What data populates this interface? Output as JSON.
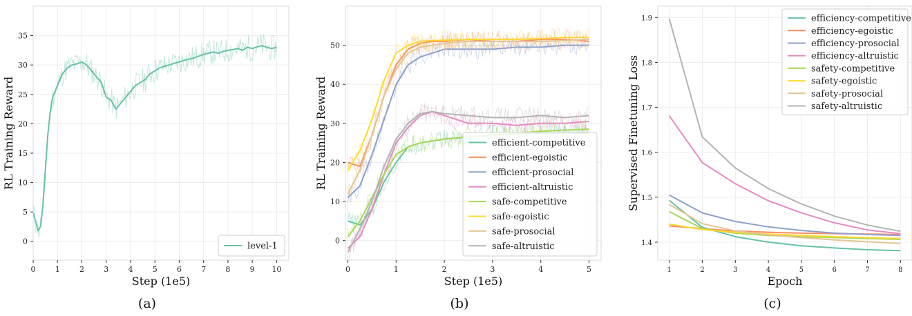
{
  "chart_data": [
    {
      "type": "line",
      "panel_label": "(a)",
      "xlabel": "Step (1e5)",
      "ylabel": "RL Training Reward",
      "xlim": [
        0,
        10.5
      ],
      "ylim": [
        -3.2,
        40
      ],
      "xticks": [
        0,
        1,
        2,
        3,
        4,
        5,
        6,
        7,
        8,
        9,
        10
      ],
      "yticks": [
        0,
        5,
        10,
        15,
        20,
        25,
        30,
        35
      ],
      "grid": true,
      "legend_position": "bottom-right",
      "series": [
        {
          "name": "level-1",
          "color": "#66c2a5",
          "x": [
            0,
            0.1,
            0.2,
            0.3,
            0.4,
            0.5,
            0.6,
            0.7,
            0.8,
            0.9,
            1.0,
            1.2,
            1.4,
            1.6,
            1.8,
            2.0,
            2.2,
            2.4,
            2.6,
            2.8,
            3.0,
            3.2,
            3.4,
            3.6,
            3.8,
            4.0,
            4.2,
            4.4,
            4.6,
            4.8,
            5.0,
            5.2,
            5.4,
            5.6,
            5.8,
            6.0,
            6.2,
            6.4,
            6.6,
            6.8,
            7.0,
            7.2,
            7.4,
            7.6,
            7.8,
            8.0,
            8.2,
            8.4,
            8.6,
            8.8,
            9.0,
            9.2,
            9.4,
            9.6,
            9.8,
            10.0
          ],
          "y": [
            4.8,
            3.5,
            1.8,
            2.5,
            6,
            12,
            18,
            22,
            24.5,
            25.5,
            26.5,
            28.5,
            29.5,
            30,
            30.2,
            30.5,
            30,
            29,
            28,
            27,
            24.5,
            24,
            22.5,
            23.5,
            24.5,
            25.5,
            26.5,
            27,
            27.5,
            28.5,
            29,
            29.5,
            29.8,
            30,
            30.3,
            30.5,
            30.8,
            31,
            31.2,
            31.5,
            31.8,
            32,
            32.2,
            32,
            32.3,
            32.5,
            32.6,
            32.8,
            32.5,
            33,
            32.8,
            33.1,
            33.3,
            33,
            32.8,
            33
          ]
        }
      ]
    },
    {
      "type": "line",
      "panel_label": "(b)",
      "xlabel": "Step (1e5)",
      "ylabel": "RL Training Reward",
      "xlim": [
        -0.05,
        5.25
      ],
      "ylim": [
        -5,
        60
      ],
      "xticks": [
        0,
        1,
        2,
        3,
        4,
        5
      ],
      "yticks": [
        0,
        10,
        20,
        30,
        40,
        50
      ],
      "grid": true,
      "legend_position": "bottom-right",
      "x": [
        0,
        0.25,
        0.5,
        0.75,
        1.0,
        1.25,
        1.5,
        1.75,
        2.0,
        2.5,
        3.0,
        3.5,
        4.0,
        4.5,
        5.0
      ],
      "series": [
        {
          "name": "efficient-competitive",
          "color": "#66c2a5",
          "values": [
            5,
            4,
            8,
            15,
            20,
            24,
            25,
            25.5,
            26,
            26.5,
            27,
            27.3,
            27.5,
            27.5,
            27.5
          ]
        },
        {
          "name": "efficient-egoistic",
          "color": "#fc8d62",
          "values": [
            20,
            19,
            27,
            37,
            45,
            49,
            50.5,
            51,
            51,
            51.5,
            51,
            51,
            51.5,
            51.5,
            51
          ]
        },
        {
          "name": "efficient-prosocial",
          "color": "#8da0cb",
          "values": [
            11,
            14,
            22,
            31,
            40,
            45,
            47,
            48,
            49,
            49,
            49,
            49.5,
            49.5,
            50,
            50
          ]
        },
        {
          "name": "efficient-altruistic",
          "color": "#e78ac3",
          "values": [
            -2,
            1,
            8,
            17,
            25,
            29,
            32,
            33,
            32,
            30,
            30,
            29.5,
            30,
            30,
            30.5
          ]
        },
        {
          "name": "safe-competitive",
          "color": "#a6d854",
          "values": [
            1,
            5,
            11,
            17,
            22,
            24,
            25,
            25.5,
            26,
            26.5,
            27,
            27.5,
            28,
            28.3,
            28.5
          ]
        },
        {
          "name": "safe-egoistic",
          "color": "#ffd92f",
          "values": [
            18,
            23,
            31,
            41,
            48,
            50,
            51,
            51.2,
            51.3,
            51.5,
            51.5,
            51.5,
            51.7,
            52,
            52
          ]
        },
        {
          "name": "safe-prosocial",
          "color": "#e5c494",
          "values": [
            12,
            18,
            27,
            37,
            44,
            48,
            49.5,
            50,
            50.5,
            51,
            51,
            51,
            51,
            51.2,
            51.5
          ]
        },
        {
          "name": "safe-altruistic",
          "color": "#b3b3b3",
          "values": [
            -3,
            3,
            10,
            19,
            26,
            30,
            32.5,
            33,
            32.5,
            32,
            31.5,
            31.5,
            32,
            31.5,
            32
          ]
        }
      ]
    },
    {
      "type": "line",
      "panel_label": "(c)",
      "xlabel": "Epoch",
      "ylabel": "Supervised Finetuning Loss",
      "xlim": [
        0.65,
        8.35
      ],
      "ylim": [
        1.36,
        1.925
      ],
      "xticks": [
        1,
        2,
        3,
        4,
        5,
        6,
        7,
        8
      ],
      "yticks": [
        1.4,
        1.5,
        1.6,
        1.7,
        1.8,
        1.9
      ],
      "grid": true,
      "legend_position": "top-right",
      "x": [
        1,
        2,
        3,
        4,
        5,
        6,
        7,
        8
      ],
      "series": [
        {
          "name": "efficiency-competitive",
          "color": "#66c2a5",
          "values": [
            1.493,
            1.433,
            1.412,
            1.4,
            1.392,
            1.387,
            1.383,
            1.381
          ]
        },
        {
          "name": "efficiency-egoistic",
          "color": "#fc8d62",
          "values": [
            1.436,
            1.43,
            1.425,
            1.422,
            1.42,
            1.419,
            1.418,
            1.417
          ]
        },
        {
          "name": "efficiency-prosocial",
          "color": "#8da0cb",
          "values": [
            1.505,
            1.465,
            1.446,
            1.434,
            1.426,
            1.42,
            1.417,
            1.415
          ]
        },
        {
          "name": "efficiency-altruistic",
          "color": "#e78ac3",
          "values": [
            1.681,
            1.577,
            1.53,
            1.492,
            1.465,
            1.443,
            1.427,
            1.419
          ]
        },
        {
          "name": "safety-competitive",
          "color": "#a6d854",
          "values": [
            1.468,
            1.43,
            1.42,
            1.415,
            1.412,
            1.41,
            1.408,
            1.406
          ]
        },
        {
          "name": "safety-egoistic",
          "color": "#ffd92f",
          "values": [
            1.44,
            1.428,
            1.422,
            1.418,
            1.415,
            1.412,
            1.41,
            1.408
          ]
        },
        {
          "name": "safety-prosocial",
          "color": "#e5c494",
          "values": [
            1.484,
            1.441,
            1.425,
            1.416,
            1.41,
            1.405,
            1.401,
            1.397
          ]
        },
        {
          "name": "safety-altruistic",
          "color": "#b3b3b3",
          "values": [
            1.897,
            1.634,
            1.565,
            1.519,
            1.485,
            1.458,
            1.438,
            1.424
          ]
        }
      ]
    }
  ]
}
